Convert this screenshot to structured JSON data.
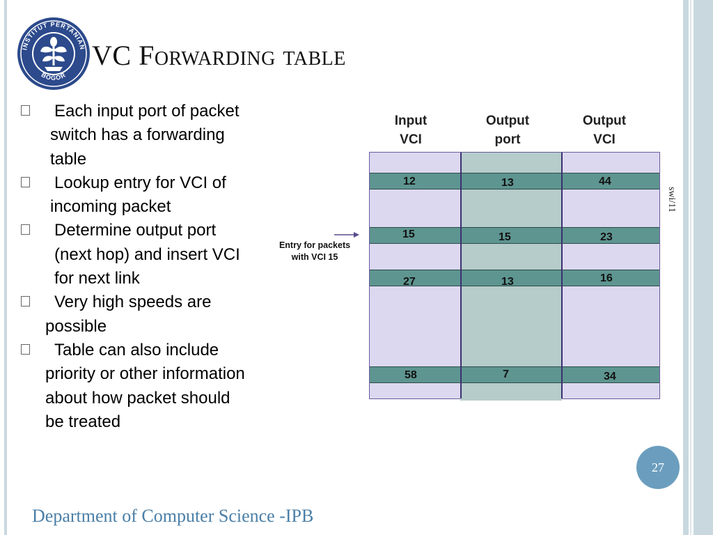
{
  "slide": {
    "title": "VC Forwarding table",
    "logo": {
      "icon": "university-seal-icon",
      "ring_text_top": "INSTITUT PERTANIAN",
      "ring_text_bottom": "BOGOR"
    },
    "bullets": [
      {
        "lines": [
          "Each input port of packet",
          "switch has a forwarding",
          "table"
        ]
      },
      {
        "lines": [
          "Lookup entry for VCI of",
          "incoming packet"
        ]
      },
      {
        "lines": [
          "Determine output port",
          "(next hop) and insert VCI",
          "for next link"
        ]
      },
      {
        "lines": [
          "Very high speeds are",
          "possible"
        ]
      },
      {
        "lines": [
          "Table can also include",
          "priority or other information",
          "about how packet should",
          "be treated"
        ]
      }
    ],
    "table": {
      "headers": [
        {
          "line1": "Input",
          "line2": "VCI"
        },
        {
          "line1": "Output",
          "line2": "port"
        },
        {
          "line1": "Output",
          "line2": "VCI"
        }
      ],
      "rows": [
        {
          "input_vci": "12",
          "output_port": "13",
          "output_vci": "44"
        },
        {
          "input_vci": "15",
          "output_port": "15",
          "output_vci": "23"
        },
        {
          "input_vci": "27",
          "output_port": "13",
          "output_vci": "16"
        },
        {
          "input_vci": "58",
          "output_port": "7",
          "output_vci": "34"
        }
      ],
      "annotation": {
        "line1": "Entry for packets",
        "line2": "with VCI 15"
      }
    },
    "side_note": "swi/11",
    "page_number": "27",
    "footer": "Department of Computer Science -IPB",
    "colors": {
      "table_background": "#dcd8f0",
      "output_port_column": "#b5cccb",
      "highlight_row": "#5e9590",
      "page_badge": "#6b9ebe",
      "footer_text": "#4a7fa8",
      "logo": "#2c4a8c"
    }
  }
}
